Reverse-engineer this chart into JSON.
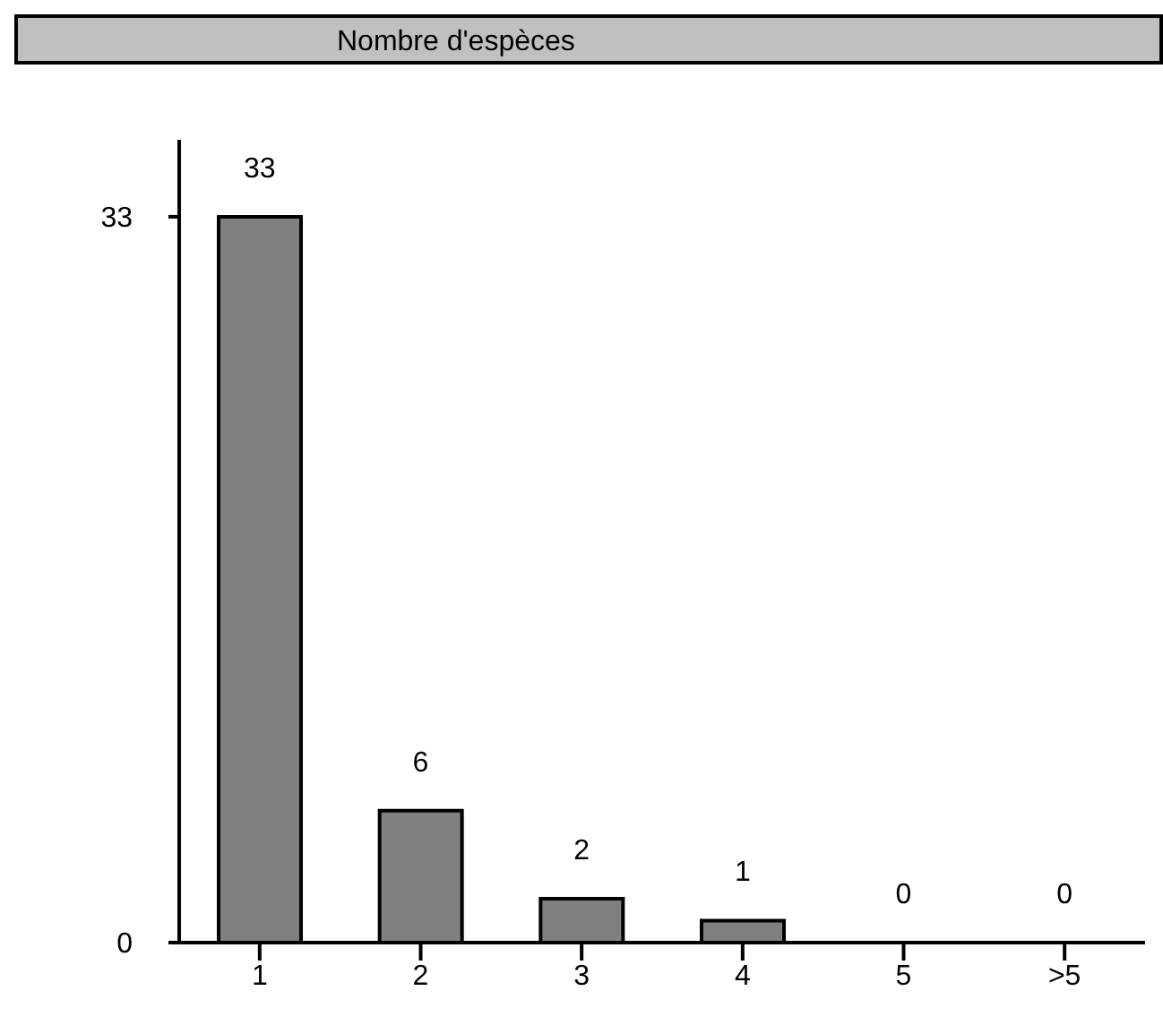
{
  "chart_data": {
    "type": "bar",
    "title": "Nombre d'espèces",
    "categories": [
      "1",
      "2",
      "3",
      "4",
      "5",
      ">5"
    ],
    "values": [
      33,
      6,
      2,
      1,
      0,
      0
    ],
    "color": "#808080",
    "ylim": [
      0,
      36.5
    ],
    "yticks": [
      0,
      33
    ],
    "data_labels": true,
    "grid": false,
    "legend": false
  }
}
